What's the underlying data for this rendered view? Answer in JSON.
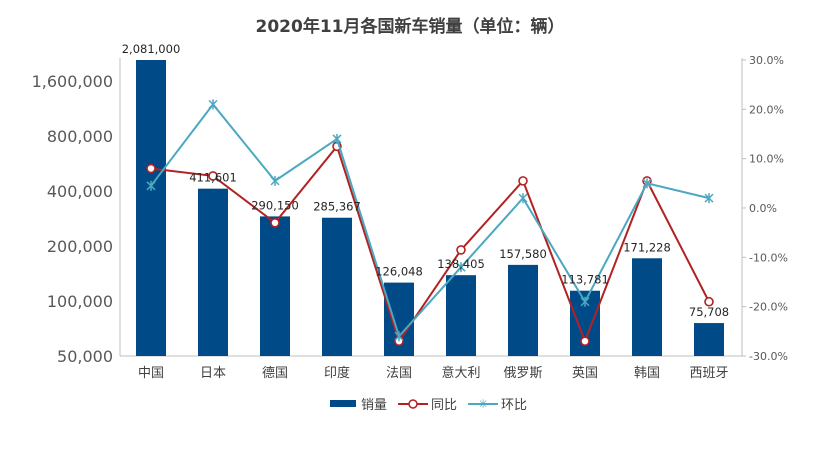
{
  "chart_data": {
    "type": "bar",
    "title": "2020年11月各国新车销量（单位：辆）",
    "categories": [
      "中国",
      "日本",
      "德国",
      "印度",
      "法国",
      "意大利",
      "俄罗斯",
      "英国",
      "韩国",
      "西班牙"
    ],
    "y_left": {
      "scale": "log2",
      "ticks": [
        50000,
        100000,
        200000,
        400000,
        800000,
        1600000
      ],
      "tick_labels": [
        "50,000",
        "100,000",
        "200,000",
        "400,000",
        "800,000",
        "1,600,000"
      ],
      "range": [
        50000,
        2081000
      ]
    },
    "y_right": {
      "scale": "linear",
      "ticks": [
        -30,
        -20,
        -10,
        0,
        10,
        20,
        30
      ],
      "tick_labels": [
        "-30.0%",
        "-20.0%",
        "-10.0%",
        "0.0%",
        "10.0%",
        "20.0%",
        "30.0%"
      ],
      "range": [
        -30,
        30
      ]
    },
    "series": [
      {
        "name": "销量",
        "kind": "bar",
        "axis": "left",
        "color": "#004b87",
        "values": [
          2081000,
          411601,
          290150,
          285367,
          126048,
          138405,
          157580,
          113781,
          171228,
          75708
        ],
        "labels": [
          "2,081,000",
          "411,601",
          "290,150",
          "285,367",
          "126,048",
          "138,405",
          "157,580",
          "113,781",
          "171,228",
          "75,708"
        ]
      },
      {
        "name": "同比",
        "kind": "line",
        "axis": "right",
        "color": "#b22222",
        "marker": "circle",
        "values": [
          8.0,
          6.5,
          -3.0,
          12.5,
          -27.0,
          -8.5,
          5.5,
          -27.0,
          5.5,
          -19.0
        ]
      },
      {
        "name": "环比",
        "kind": "line",
        "axis": "right",
        "color": "#4aa8c0",
        "marker": "x",
        "values": [
          4.5,
          21.0,
          5.5,
          14.0,
          -26.0,
          -12.0,
          2.0,
          -19.0,
          5.0,
          2.0
        ]
      }
    ],
    "legend": {
      "placement": "bottom",
      "items": [
        "销量",
        "同比",
        "环比"
      ]
    },
    "grid": false
  }
}
